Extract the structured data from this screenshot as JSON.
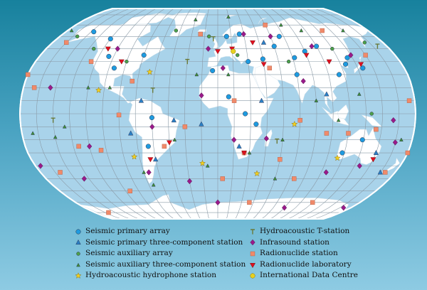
{
  "colors": {
    "ocean": "#a9d3ea",
    "land": "#ffffff",
    "grid": "#8a9aa6",
    "outline": "#ffffff"
  },
  "legend": [
    {
      "key": "spa",
      "label": "Seismic primary array",
      "shape": "circle",
      "color": "#1e9be0"
    },
    {
      "key": "sp3",
      "label": "Seismic primary three-component station",
      "shape": "triangle",
      "color": "#2a7fc4"
    },
    {
      "key": "saa",
      "label": "Seismic auxiliary array",
      "shape": "circle",
      "color": "#4ba04a",
      "small": true
    },
    {
      "key": "sa3",
      "label": "Seismic auxiliary three-component station",
      "shape": "triangle",
      "color": "#3f8f3a",
      "small": true
    },
    {
      "key": "hh",
      "label": "Hydroacoustic hydrophone station",
      "shape": "star",
      "color": "#f2d020"
    },
    {
      "key": "ht",
      "label": "Hydroacoustic T-station",
      "shape": "tee",
      "color": "#6a7a3a"
    },
    {
      "key": "inf",
      "label": "Infrasound station",
      "shape": "diamond",
      "color": "#9a1a8a"
    },
    {
      "key": "rn",
      "label": "Radionuclide station",
      "shape": "square",
      "color": "#f08a6a"
    },
    {
      "key": "rl",
      "label": "Radionuclide laboratory",
      "shape": "invtri",
      "color": "#e01020"
    },
    {
      "key": "idc",
      "label": "International Data Centre",
      "shape": "circle",
      "color": "#e8d020",
      "stroke": "#8a7a00"
    }
  ],
  "stations": [
    [
      "spa",
      -147,
      64
    ],
    [
      "spa",
      -110,
      44
    ],
    [
      "spa",
      -100,
      35
    ],
    [
      "spa",
      -75,
      45
    ],
    [
      "spa",
      -120,
      58
    ],
    [
      "spa",
      -65,
      -25
    ],
    [
      "spa",
      -60,
      -3
    ],
    [
      "spa",
      10,
      60
    ],
    [
      "spa",
      25,
      62
    ],
    [
      "spa",
      30,
      40
    ],
    [
      "spa",
      45,
      42
    ],
    [
      "spa",
      60,
      52
    ],
    [
      "spa",
      77,
      43
    ],
    [
      "spa",
      90,
      48
    ],
    [
      "spa",
      105,
      52
    ],
    [
      "spa",
      130,
      43
    ],
    [
      "spa",
      140,
      35
    ],
    [
      "spa",
      125,
      38
    ],
    [
      "spa",
      115,
      30
    ],
    [
      "spa",
      75,
      30
    ],
    [
      "spa",
      10,
      13
    ],
    [
      "spa",
      25,
      0
    ],
    [
      "spa",
      35,
      -8
    ],
    [
      "spa",
      134,
      -20
    ],
    [
      "spa",
      118,
      -30
    ],
    [
      "spa",
      -5,
      33
    ],
    [
      "spa",
      70,
      60
    ],
    [
      "sp3",
      -70,
      10
    ],
    [
      "sp3",
      -60,
      -35
    ],
    [
      "sp3",
      -15,
      -8
    ],
    [
      "sp3",
      40,
      10
    ],
    [
      "sp3",
      100,
      15
    ],
    [
      "sp3",
      -40,
      -5
    ],
    [
      "sp3",
      150,
      -30
    ],
    [
      "sp3",
      20,
      -25
    ],
    [
      "sp3",
      -80,
      -15
    ],
    [
      "sp3",
      50,
      55
    ],
    [
      "sp3",
      165,
      -45
    ],
    [
      "saa",
      -160,
      60
    ],
    [
      "saa",
      -130,
      50
    ],
    [
      "saa",
      -90,
      40
    ],
    [
      "saa",
      -50,
      65
    ],
    [
      "saa",
      20,
      45
    ],
    [
      "saa",
      70,
      40
    ],
    [
      "saa",
      120,
      50
    ],
    [
      "saa",
      160,
      55
    ],
    [
      "saa",
      -10,
      60
    ],
    [
      "saa",
      140,
      0
    ],
    [
      "sa3",
      -170,
      -15
    ],
    [
      "sa3",
      -150,
      -18
    ],
    [
      "sa3",
      -120,
      20
    ],
    [
      "sa3",
      -100,
      20
    ],
    [
      "sa3",
      -40,
      -20
    ],
    [
      "sa3",
      -20,
      30
    ],
    [
      "sa3",
      10,
      30
    ],
    [
      "sa3",
      30,
      -30
    ],
    [
      "sa3",
      60,
      -20
    ],
    [
      "sa3",
      90,
      10
    ],
    [
      "sa3",
      110,
      -5
    ],
    [
      "sa3",
      130,
      15
    ],
    [
      "sa3",
      170,
      -20
    ],
    [
      "sa3",
      -140,
      -10
    ],
    [
      "sa3",
      -75,
      -45
    ],
    [
      "sa3",
      -10,
      -40
    ],
    [
      "sa3",
      80,
      70
    ],
    [
      "sa3",
      -30,
      75
    ],
    [
      "sa3",
      15,
      78
    ],
    [
      "sa3",
      -175,
      65
    ],
    [
      "sa3",
      150,
      65
    ],
    [
      "sa3",
      100,
      65
    ],
    [
      "sa3",
      -70,
      -55
    ],
    [
      "sa3",
      60,
      -50
    ],
    [
      "hh",
      -110,
      18
    ],
    [
      "hh",
      -15,
      -38
    ],
    [
      "hh",
      70,
      -8
    ],
    [
      "hh",
      115,
      -34
    ],
    [
      "hh",
      -80,
      -33
    ],
    [
      "hh",
      40,
      -46
    ],
    [
      "hh",
      -65,
      32
    ],
    [
      "ht",
      -150,
      -5
    ],
    [
      "ht",
      -30,
      40
    ],
    [
      "ht",
      -5,
      58
    ],
    [
      "ht",
      55,
      -21
    ],
    [
      "ht",
      -60,
      18
    ],
    [
      "ht",
      170,
      52
    ],
    [
      "inf",
      -155,
      20
    ],
    [
      "inf",
      -105,
      50
    ],
    [
      "inf",
      -70,
      -45
    ],
    [
      "inf",
      -60,
      -10
    ],
    [
      "inf",
      -10,
      50
    ],
    [
      "inf",
      15,
      -20
    ],
    [
      "inf",
      30,
      62
    ],
    [
      "inf",
      45,
      -19
    ],
    [
      "inf",
      60,
      60
    ],
    [
      "inf",
      80,
      25
    ],
    [
      "inf",
      100,
      52
    ],
    [
      "inf",
      135,
      45
    ],
    [
      "inf",
      140,
      -40
    ],
    [
      "inf",
      160,
      -5
    ],
    [
      "inf",
      -175,
      -40
    ],
    [
      "inf",
      -120,
      -25
    ],
    [
      "inf",
      -140,
      -50
    ],
    [
      "inf",
      0,
      -70
    ],
    [
      "inf",
      90,
      -75
    ],
    [
      "inf",
      170,
      -75
    ],
    [
      "inf",
      -30,
      -52
    ],
    [
      "inf",
      165,
      -22
    ],
    [
      "inf",
      -15,
      14
    ],
    [
      "inf",
      5,
      35
    ],
    [
      "inf",
      110,
      -45
    ],
    [
      "rn",
      -165,
      55
    ],
    [
      "rn",
      -170,
      20
    ],
    [
      "rn",
      -160,
      -45
    ],
    [
      "rn",
      -130,
      -25
    ],
    [
      "rn",
      -110,
      -28
    ],
    [
      "rn",
      -90,
      -1
    ],
    [
      "rn",
      -125,
      40
    ],
    [
      "rn",
      -80,
      25
    ],
    [
      "rn",
      -50,
      -25
    ],
    [
      "rn",
      -30,
      -10
    ],
    [
      "rn",
      -20,
      62
    ],
    [
      "rn",
      5,
      -50
    ],
    [
      "rn",
      15,
      10
    ],
    [
      "rn",
      25,
      -30
    ],
    [
      "rn",
      50,
      35
    ],
    [
      "rn",
      60,
      -35
    ],
    [
      "rn",
      80,
      -50
    ],
    [
      "rn",
      100,
      -15
    ],
    [
      "rn",
      120,
      -15
    ],
    [
      "rn",
      145,
      -12
    ],
    [
      "rn",
      170,
      -45
    ],
    [
      "rn",
      150,
      45
    ],
    [
      "rn",
      175,
      10
    ],
    [
      "rn",
      -100,
      -60
    ],
    [
      "rn",
      40,
      -70
    ],
    [
      "rn",
      120,
      -70
    ],
    [
      "rn",
      -160,
      -80
    ],
    [
      "rn",
      75,
      -5
    ],
    [
      "rn",
      180,
      -30
    ],
    [
      "rn",
      -180,
      30
    ],
    [
      "rn",
      60,
      70
    ],
    [
      "rn",
      125,
      65
    ],
    [
      "rl",
      -95,
      40
    ],
    [
      "rl",
      -65,
      -35
    ],
    [
      "rl",
      0,
      48
    ],
    [
      "rl",
      15,
      50
    ],
    [
      "rl",
      38,
      55
    ],
    [
      "rl",
      90,
      45
    ],
    [
      "rl",
      110,
      40
    ],
    [
      "rl",
      140,
      38
    ],
    [
      "rl",
      150,
      -35
    ],
    [
      "rl",
      25,
      -30
    ],
    [
      "rl",
      -115,
      50
    ],
    [
      "rl",
      45,
      38
    ],
    [
      "rl",
      -45,
      -22
    ],
    [
      "idc",
      16,
      48
    ]
  ]
}
